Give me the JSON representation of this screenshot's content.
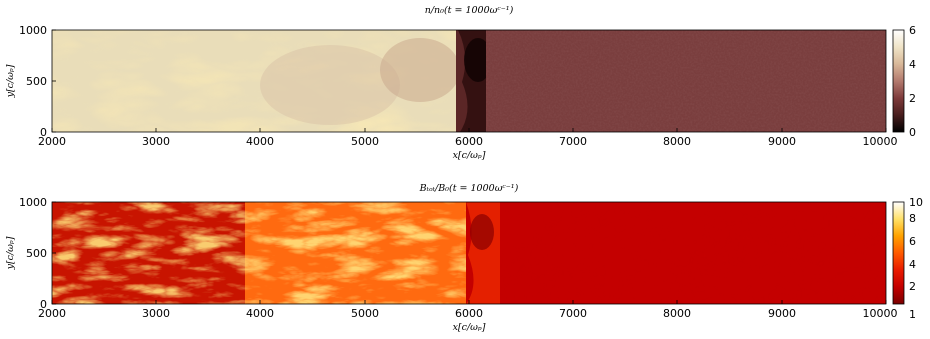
{
  "figure": {
    "background": "#ffffff"
  },
  "chart_data": [
    {
      "type": "heatmap",
      "title": "n/n₀(t = 1000ωᶜ⁻¹)",
      "xlabel": "x[c/ωₚ]",
      "ylabel": "y[c/ωₚ]",
      "xlim": [
        2000,
        10000
      ],
      "ylim": [
        0,
        1000
      ],
      "x_ticks": [
        "2000",
        "3000",
        "4000",
        "5000",
        "6000",
        "7000",
        "8000",
        "9000",
        "10000"
      ],
      "y_ticks": [
        "0",
        "500",
        "1000"
      ],
      "colorbar": {
        "range": [
          0,
          6
        ],
        "ticks": [
          "0",
          "2",
          "4",
          "6"
        ],
        "colormap": "pink-hot",
        "stops": [
          "#000000",
          "#4a1e1e",
          "#7d3a3a",
          "#b37a6e",
          "#d9b99a",
          "#efe3c6",
          "#ffffff"
        ]
      },
      "regions": [
        {
          "x": [
            2000,
            5900
          ],
          "level": 5.1,
          "description_color": "#e9ddb9"
        },
        {
          "x": [
            5900,
            6050
          ],
          "level": 1.2,
          "description_color": "#3a1414"
        },
        {
          "x": [
            6050,
            10000
          ],
          "level": 1.9,
          "description_color": "#7a3e3e"
        }
      ]
    },
    {
      "type": "heatmap",
      "title": "Bₜₒₜ/B₀(t = 1000ωᶜ⁻¹)",
      "xlabel": "x[c/ωₚ]",
      "ylabel": "y[c/ωₚ]",
      "xlim": [
        2000,
        10000
      ],
      "ylim": [
        0,
        1000
      ],
      "x_ticks": [
        "2000",
        "3000",
        "4000",
        "5000",
        "6000",
        "7000",
        "8000",
        "9000",
        "10000"
      ],
      "y_ticks": [
        "0",
        "500",
        "1000"
      ],
      "colorbar": {
        "range": [
          1,
          10
        ],
        "ticks": [
          "1",
          "2",
          "4",
          "6",
          "8",
          "10"
        ],
        "colormap": "hot",
        "stops": [
          "#7a0000",
          "#c40000",
          "#e81a00",
          "#ff5a00",
          "#ffa300",
          "#ffe066",
          "#ffffff"
        ]
      },
      "regions": [
        {
          "x": [
            2000,
            3800
          ],
          "level": 3.0,
          "description_color": "#c81400"
        },
        {
          "x": [
            3800,
            6050
          ],
          "level": 5.0,
          "description_color": "#ff6a10"
        },
        {
          "x": [
            6050,
            10000
          ],
          "level": 2.2,
          "description_color": "#c40000"
        }
      ]
    }
  ]
}
